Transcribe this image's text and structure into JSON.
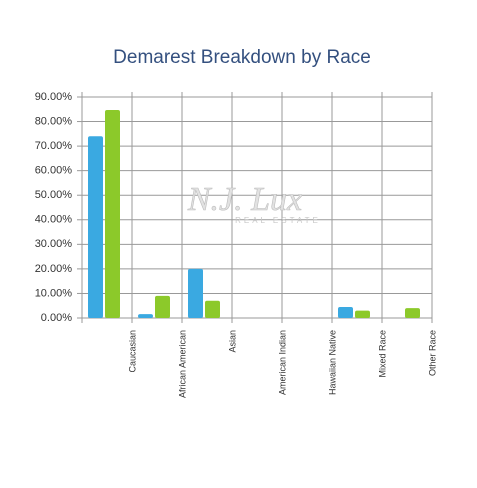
{
  "chart_data": {
    "type": "bar",
    "title": "Demarest Breakdown by Race",
    "categories": [
      "Caucasian",
      "African  American",
      "Asian",
      "American Indian",
      "Hawaiian Native",
      "Mixed Race",
      "Other Race"
    ],
    "series": [
      {
        "color": "#3aa9e1",
        "values": [
          74,
          1.6,
          20,
          0,
          0,
          4.5,
          0
        ]
      },
      {
        "color": "#8cc92a",
        "values": [
          84.7,
          9,
          7,
          0,
          0,
          3,
          4
        ]
      }
    ],
    "ylim": [
      0,
      90
    ],
    "yticks": [
      {
        "value": 0,
        "label": "0.00%"
      },
      {
        "value": 10,
        "label": "10.00%"
      },
      {
        "value": 20,
        "label": "20.00%"
      },
      {
        "value": 30,
        "label": "30.00%"
      },
      {
        "value": 40,
        "label": "40.00%"
      },
      {
        "value": 50,
        "label": "50.00%"
      },
      {
        "value": 60,
        "label": "60.00%"
      },
      {
        "value": 70,
        "label": "70.00%"
      },
      {
        "value": 80,
        "label": "80.00%"
      },
      {
        "value": 90,
        "label": "90.00%"
      }
    ],
    "grid": true,
    "watermark": {
      "title": "N.J. Lux",
      "subtitle": "REAL ESTATE"
    }
  }
}
